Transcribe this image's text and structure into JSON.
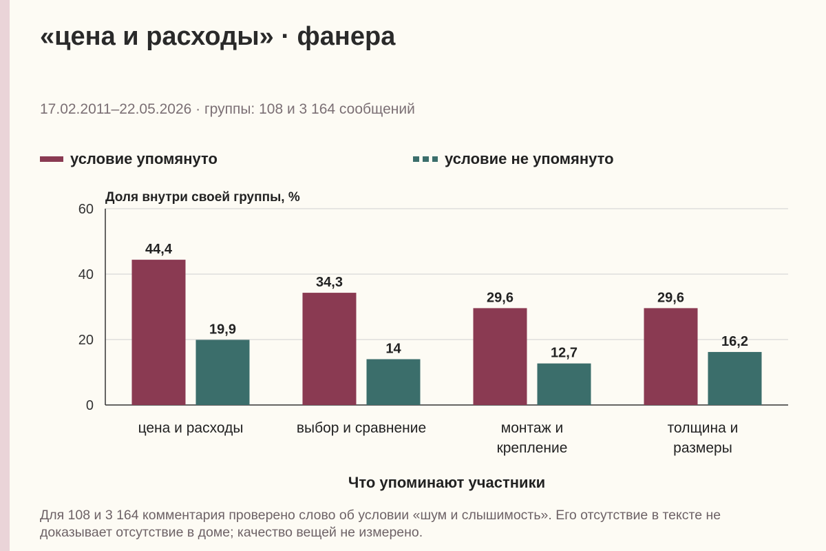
{
  "title": "«цена и расходы» · фанера",
  "subtitle": "17.02.2011–22.05.2026 · группы: 108 и 3 164 сообщений",
  "legend": {
    "mentioned": "условие упомянуто",
    "not_mentioned": "условие не упомянуто"
  },
  "footnote": "Для 108 и 3 164 комментария проверено слово об условии «шум и слышимость». Его отсутствие в тексте не доказывает отсутствие в доме; качество вещей не измерено.",
  "colors": {
    "mentioned": "#8a3a52",
    "not_mentioned": "#3b6e6b",
    "background": "#fdfbf4",
    "accent_strip": "#ead4d8"
  },
  "chart_data": {
    "type": "bar",
    "ylabel": "Доля внутри своей группы, %",
    "xlabel": "Что упоминают участники",
    "ylim": [
      0,
      60
    ],
    "yticks": [
      0,
      20,
      40,
      60
    ],
    "grid": true,
    "legend_position": "top",
    "categories": [
      [
        "цена и расходы"
      ],
      [
        "выбор и сравнение"
      ],
      [
        "монтаж и",
        "крепление"
      ],
      [
        "толщина и",
        "размеры"
      ]
    ],
    "series": [
      {
        "name": "условие упомянуто",
        "values": [
          44.4,
          34.3,
          29.6,
          29.6
        ],
        "labels": [
          "44,4",
          "34,3",
          "29,6",
          "29,6"
        ]
      },
      {
        "name": "условие не упомянуто",
        "values": [
          19.9,
          14,
          12.7,
          16.2
        ],
        "labels": [
          "19,9",
          "14",
          "12,7",
          "16,2"
        ]
      }
    ]
  }
}
